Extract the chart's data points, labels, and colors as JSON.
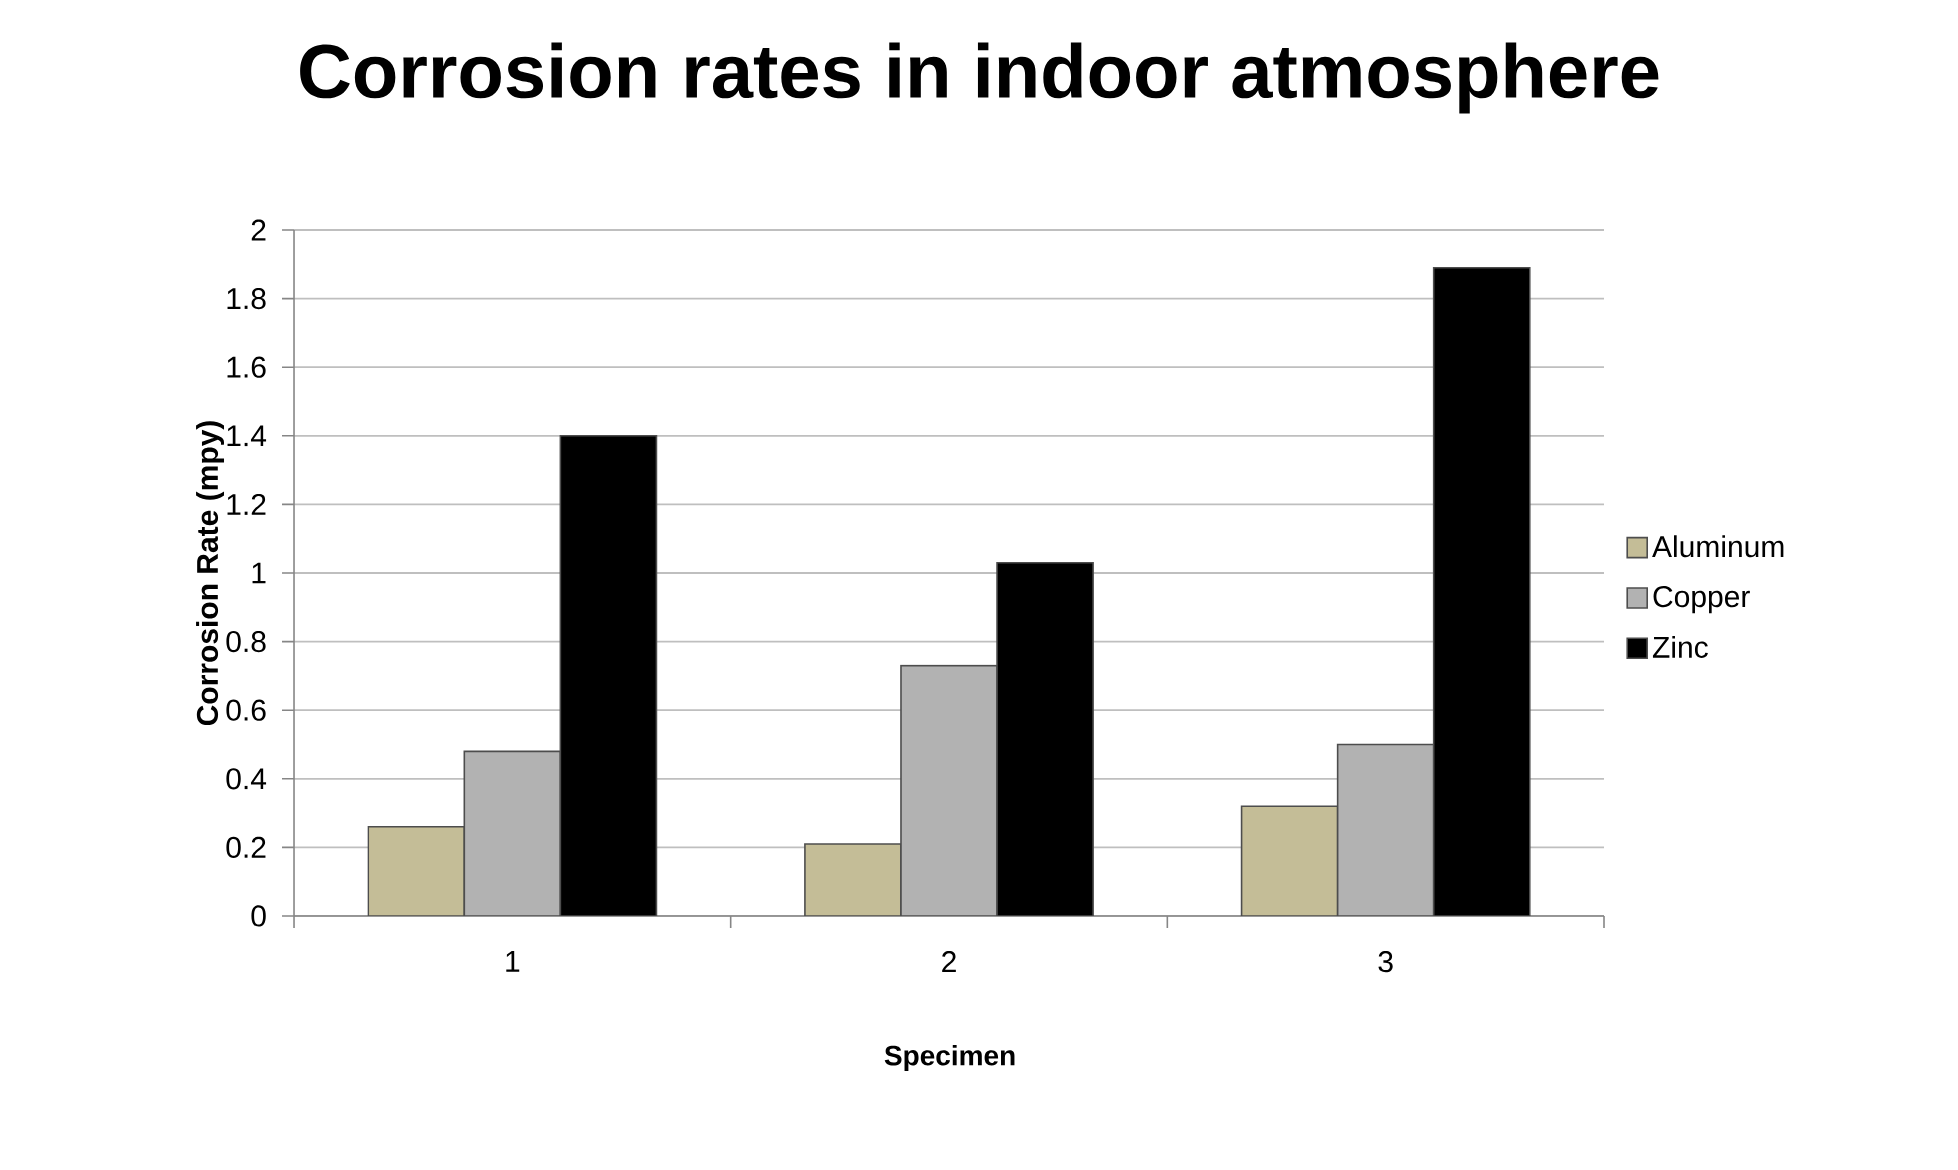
{
  "chart_data": {
    "type": "bar",
    "title": "Corrosion rates in indoor atmosphere",
    "xlabel": "Specimen",
    "ylabel": "Corrosion Rate (mpy)",
    "categories": [
      "1",
      "2",
      "3"
    ],
    "series": [
      {
        "name": "Aluminum",
        "color": "#c4bd97",
        "values": [
          0.26,
          0.21,
          0.32
        ]
      },
      {
        "name": "Copper",
        "color": "#b2b2b2",
        "values": [
          0.48,
          0.73,
          0.5
        ]
      },
      {
        "name": "Zinc",
        "color": "#000000",
        "values": [
          1.4,
          1.03,
          1.89
        ]
      }
    ],
    "ylim": [
      0,
      2
    ],
    "yticks": [
      0,
      0.2,
      0.4,
      0.6,
      0.8,
      1,
      1.2,
      1.4,
      1.6,
      1.8,
      2
    ],
    "grid": "y",
    "legend": "right"
  }
}
